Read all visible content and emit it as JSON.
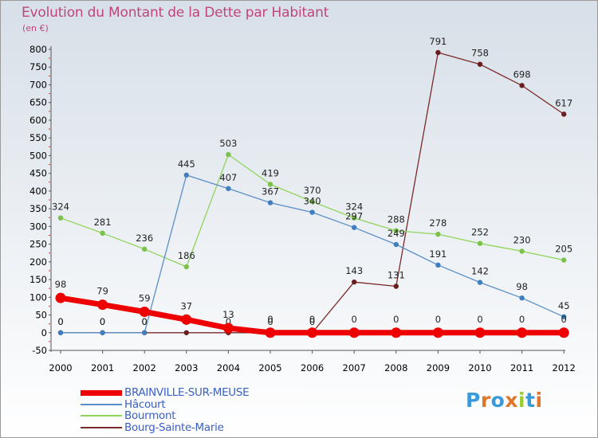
{
  "title": "Evolution du Montant de la Dette par Habitant",
  "unit_label": "(en €)",
  "logo": {
    "text": "Proxiti",
    "letters": [
      "P",
      "r",
      "o",
      "x",
      "i",
      "t",
      "i"
    ],
    "colors": [
      "#3a9ad9",
      "#e0762a",
      "#3a9ad9",
      "#e0762a",
      "#9acd32",
      "#3a9ad9",
      "#e0762a"
    ]
  },
  "colors": {
    "title": "#c0457c",
    "axis_labels": "#000000",
    "legend_text": "#3b5fc4",
    "background_top": "#d7dfe8",
    "background_bottom": "#ffffff"
  },
  "chart_data": {
    "type": "line",
    "title": "Evolution du Montant de la Dette par Habitant",
    "ylabel": "(en €)",
    "xlabel": "",
    "x": [
      "2000",
      "2001",
      "2002",
      "2003",
      "2004",
      "2005",
      "2006",
      "2007",
      "2008",
      "2009",
      "2010",
      "2011",
      "2012"
    ],
    "ylim": [
      -50,
      800
    ],
    "yticks": [
      -50,
      0,
      50,
      100,
      150,
      200,
      250,
      300,
      350,
      400,
      450,
      500,
      550,
      600,
      650,
      700,
      750,
      800
    ],
    "grid": false,
    "legend_position": "bottom-left",
    "series": [
      {
        "name": "Bourg-Sainte-Marie",
        "color": "#7a2a2a",
        "values": [
          0,
          0,
          0,
          0,
          0,
          0,
          0,
          143,
          131,
          791,
          758,
          698,
          617
        ]
      },
      {
        "name": "Bourmont",
        "color": "#8fd45a",
        "values": [
          324,
          281,
          236,
          186,
          503,
          419,
          370,
          324,
          288,
          278,
          252,
          230,
          205
        ]
      },
      {
        "name": "Hâcourt",
        "color": "#5b8fc7",
        "values": [
          0,
          0,
          0,
          445,
          407,
          367,
          340,
          297,
          249,
          191,
          142,
          98,
          45
        ]
      },
      {
        "name": "BRAINVILLE-SUR-MEUSE",
        "color": "#ee0000",
        "values": [
          98,
          79,
          59,
          37,
          13,
          0,
          0,
          0,
          0,
          0,
          0,
          0,
          0
        ]
      }
    ],
    "legend_order": [
      "BRAINVILLE-SUR-MEUSE",
      "Hâcourt",
      "Bourmont",
      "Bourg-Sainte-Marie"
    ]
  }
}
